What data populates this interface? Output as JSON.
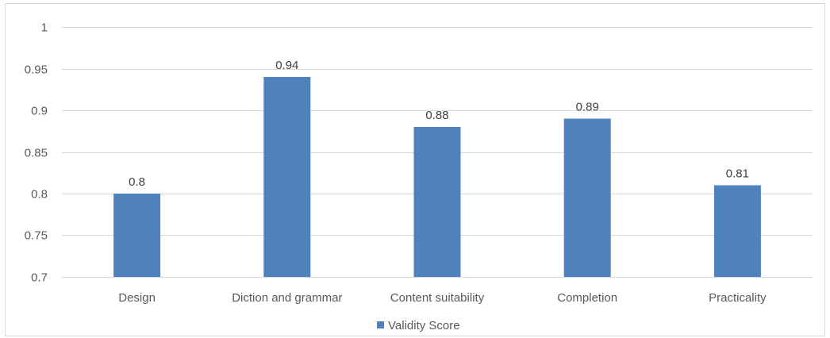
{
  "chart_data": {
    "type": "bar",
    "categories": [
      "Design",
      "Diction and grammar",
      "Content suitability",
      "Completion",
      "Practicality"
    ],
    "series": [
      {
        "name": "Validity Score",
        "values": [
          0.8,
          0.94,
          0.88,
          0.89,
          0.81
        ],
        "color": "#4f81bd"
      }
    ],
    "data_labels": [
      "0.8",
      "0.94",
      "0.88",
      "0.89",
      "0.81"
    ],
    "y_ticks": [
      "0.7",
      "0.75",
      "0.8",
      "0.85",
      "0.9",
      "0.95",
      "1"
    ],
    "ylim": [
      0.7,
      1
    ],
    "grid": true,
    "gridline_color": "#d9d9d9",
    "legend_placement": "bottom",
    "title": "",
    "xlabel": "",
    "ylabel": ""
  }
}
